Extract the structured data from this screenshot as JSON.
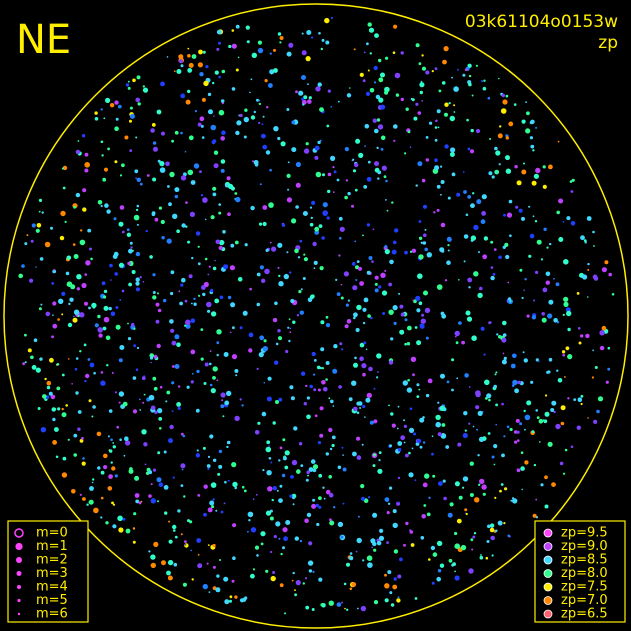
{
  "corner_label": "NE",
  "title": "03k61104o0153w",
  "subtitle": "zp",
  "magnitude_legend": [
    "m=0",
    "m=1",
    "m=2",
    "m=3",
    "m=4",
    "m=5",
    "m=6"
  ],
  "zp_legend": [
    {
      "label": "zp=9.5",
      "color": "#ff44ff"
    },
    {
      "label": "zp=9.0",
      "color": "#c040ff"
    },
    {
      "label": "zp=8.5",
      "color": "#40d8ff"
    },
    {
      "label": "zp=8.0",
      "color": "#30ff90"
    },
    {
      "label": "zp=7.5",
      "color": "#ffee00"
    },
    {
      "label": "zp=7.0",
      "color": "#ff8800"
    },
    {
      "label": "zp=6.5",
      "color": "#ff6070"
    }
  ]
}
